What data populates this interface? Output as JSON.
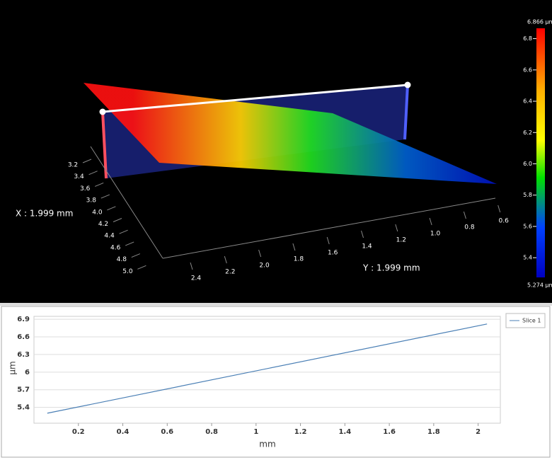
{
  "view3d": {
    "x_axis_label": "X : 1.999 mm",
    "y_axis_label": "Y : 1.999 mm",
    "x_ticks": [
      "3.2",
      "3.4",
      "3.6",
      "3.8",
      "4.0",
      "4.2",
      "4.4",
      "4.6",
      "4.8",
      "5.0"
    ],
    "y_ticks": [
      "2.4",
      "2.2",
      "2.0",
      "1.8",
      "1.6",
      "1.4",
      "1.2",
      "1.0",
      "0.8",
      "0.6"
    ],
    "colorbar": {
      "max_label": "6.866 µm",
      "min_label": "5.274 µm",
      "lim": [
        5.274,
        6.866
      ],
      "ticks": [
        6.8,
        6.6,
        6.4,
        6.2,
        {
          "value": 6,
          "label": "6.0"
        },
        5.8,
        5.6,
        5.4
      ]
    }
  },
  "chart_data": {
    "type": "line",
    "ylabel": "µm",
    "xlabel": "mm",
    "x": [
      0.06,
      2.04
    ],
    "series": [
      {
        "name": "Slice 1",
        "color": "#4a7fb5",
        "values": [
          5.3,
          6.82
        ]
      }
    ],
    "xlim": [
      0,
      2.1
    ],
    "xticks": [
      0.2,
      0.4,
      0.6,
      0.8,
      1,
      1.2,
      1.4,
      1.6,
      1.8,
      2
    ],
    "ylim": [
      5.13,
      6.95
    ],
    "yticks": [
      5.4,
      5.7,
      6,
      6.3,
      6.6,
      6.9
    ],
    "grid": true
  }
}
